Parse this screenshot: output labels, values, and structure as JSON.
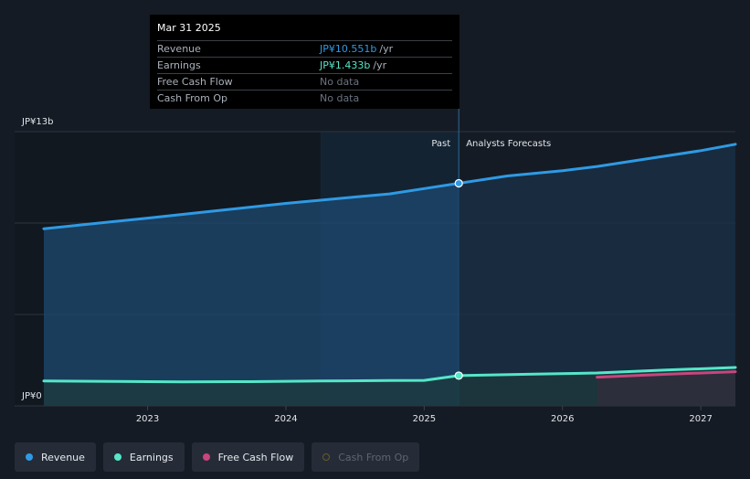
{
  "tooltip": {
    "date": "Mar 31 2025",
    "rows": [
      {
        "label": "Revenue",
        "value": "JP¥10.551b",
        "unit": "/yr"
      },
      {
        "label": "Earnings",
        "value": "JP¥1.433b",
        "unit": "/yr"
      },
      {
        "label": "Free Cash Flow",
        "value": "No data",
        "unit": ""
      },
      {
        "label": "Cash From Op",
        "value": "No data",
        "unit": ""
      }
    ]
  },
  "labels": {
    "past": "Past",
    "forecast": "Analysts Forecasts"
  },
  "legend": [
    {
      "label": "Revenue",
      "color": "#2f9ae4",
      "active": true
    },
    {
      "label": "Earnings",
      "color": "#55e6c8",
      "active": true
    },
    {
      "label": "Free Cash Flow",
      "color": "#c8457e",
      "active": true
    },
    {
      "label": "Cash From Op",
      "color": "#6b5a2a",
      "active": false
    }
  ],
  "chart_data": {
    "type": "area",
    "y_unit": "JP¥ billions",
    "ylim": [
      0,
      13
    ],
    "y_ticks": [
      {
        "value": 13,
        "label": "JP¥13b"
      },
      {
        "value": 0,
        "label": "JP¥0"
      }
    ],
    "x_ticks": [
      2023,
      2024,
      2025,
      2026,
      2027
    ],
    "xlim": [
      2022.2,
      2027.25
    ],
    "highlight_range": [
      2024.25,
      2025.25
    ],
    "divider_x": 2025.25,
    "series": [
      {
        "name": "Revenue",
        "color": "#2f9ae4",
        "past": [
          [
            2022.25,
            8.4
          ],
          [
            2023.0,
            8.9
          ],
          [
            2023.5,
            9.25
          ],
          [
            2024.0,
            9.6
          ],
          [
            2024.5,
            9.9
          ],
          [
            2024.75,
            10.05
          ],
          [
            2025.0,
            10.3
          ],
          [
            2025.25,
            10.551
          ]
        ],
        "forecast": [
          [
            2025.25,
            10.551
          ],
          [
            2025.6,
            10.9
          ],
          [
            2026.0,
            11.15
          ],
          [
            2026.25,
            11.35
          ],
          [
            2026.6,
            11.7
          ],
          [
            2027.0,
            12.1
          ],
          [
            2027.25,
            12.4
          ]
        ]
      },
      {
        "name": "Earnings",
        "color": "#55e6c8",
        "past": [
          [
            2022.25,
            1.18
          ],
          [
            2022.75,
            1.16
          ],
          [
            2023.25,
            1.14
          ],
          [
            2023.75,
            1.15
          ],
          [
            2024.25,
            1.18
          ],
          [
            2024.75,
            1.2
          ],
          [
            2025.0,
            1.21
          ],
          [
            2025.25,
            1.433
          ]
        ],
        "forecast": [
          [
            2025.25,
            1.433
          ],
          [
            2025.75,
            1.5
          ],
          [
            2026.25,
            1.56
          ],
          [
            2026.75,
            1.7
          ],
          [
            2027.25,
            1.82
          ]
        ]
      },
      {
        "name": "Free Cash Flow",
        "color": "#c8457e",
        "past": [],
        "forecast": [
          [
            2026.25,
            1.36
          ],
          [
            2026.75,
            1.5
          ],
          [
            2027.25,
            1.62
          ]
        ]
      }
    ],
    "hover_x": 2025.25
  }
}
